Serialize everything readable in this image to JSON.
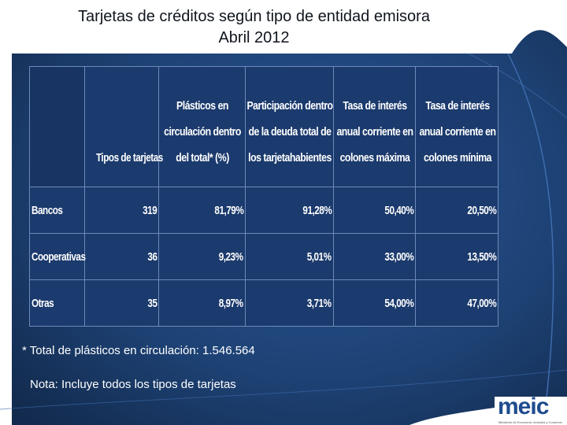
{
  "title": {
    "line1": "Tarjetas de créditos según tipo de entidad emisora",
    "line2": "Abril 2012"
  },
  "table": {
    "headers": [
      "",
      "Tipos de tarjetas",
      "Plásticos en circulación dentro del total* (%)",
      "Participación dentro de la deuda total de los tarjetahabientes",
      "Tasa de interés anual corriente en colones máxima",
      "Tasa de interés anual corriente en colones mínima"
    ],
    "rows": [
      {
        "label": "Bancos",
        "cells": [
          "319",
          "81,79%",
          "91,28%",
          "50,40%",
          "20,50%"
        ]
      },
      {
        "label": "Cooperativas",
        "cells": [
          "36",
          "9,23%",
          "5,01%",
          "33,00%",
          "13,50%"
        ]
      },
      {
        "label": "Otras",
        "cells": [
          "35",
          "8,97%",
          "3,71%",
          "54,00%",
          "47,00%"
        ]
      }
    ]
  },
  "footnote": "* Total de plásticos en circulación: 1.546.564",
  "note": "Nota: Incluye todos los tipos de tarjetas",
  "logo": {
    "text": "meic",
    "subtitle": "Ministerio de Economía, Industria y Comercio"
  },
  "colors": {
    "background": "#1e4478",
    "table": "#1b3a6d",
    "accent": "#1f4c8f"
  }
}
